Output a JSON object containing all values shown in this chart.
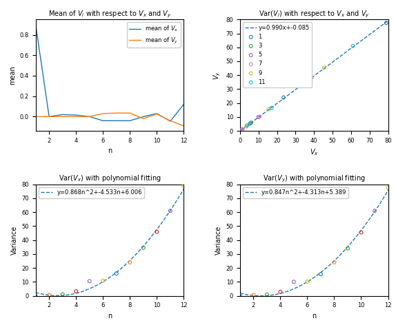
{
  "top_left": {
    "title": "Mean of $V_i$ with respect to $V_x$ and $V_y$",
    "xlabel": "n",
    "ylabel": "mean",
    "mean_vx_n": [
      1,
      2,
      3,
      4,
      5,
      6,
      7,
      8,
      9,
      10,
      11,
      12
    ],
    "mean_vx": [
      0.9,
      0.0,
      0.02,
      0.015,
      0.0,
      -0.04,
      -0.04,
      -0.04,
      0.0,
      0.03,
      -0.045,
      0.12
    ],
    "mean_vy_n": [
      1,
      2,
      3,
      4,
      5,
      6,
      7,
      8,
      9,
      10,
      11,
      12
    ],
    "mean_vy": [
      0.0,
      0.0,
      0.0,
      0.0,
      0.0,
      0.03,
      0.035,
      0.035,
      -0.02,
      0.025,
      -0.04,
      -0.09
    ],
    "color_vx": "#1f77b4",
    "color_vy": "#ff7f0e",
    "legend_vx": "mean of $V_x$",
    "legend_vy": "mean of $V_y$"
  },
  "top_right": {
    "title": "Var($V_i$) with respect to $V_x$ and $V_y$",
    "xlabel": "$V_x$",
    "ylabel": "$V_y$",
    "fit_label": "y=0.990x+-0.085",
    "fit_slope": 0.99,
    "fit_intercept": -0.085,
    "scatter_colors": [
      "#1f77b4",
      "#2ca02c",
      "#9467bd",
      "#e377c2",
      "#bcbd22",
      "#17becf"
    ],
    "scatter_labels": [
      "1",
      "3",
      "5",
      "7",
      "9",
      "11"
    ],
    "vx_vals": [
      0.05,
      0.3,
      0.9,
      1.4,
      3.5,
      3.8,
      5.5,
      6.0,
      10.0,
      10.5,
      15.5,
      17.0,
      23.5,
      34.0,
      34.5,
      38.5,
      45.5,
      61.0,
      79.0
    ],
    "vy_vals": [
      0.05,
      0.3,
      0.85,
      1.4,
      3.2,
      3.9,
      5.3,
      5.9,
      10.0,
      10.2,
      15.5,
      16.5,
      24.0,
      33.5,
      34.0,
      38.0,
      45.5,
      61.0,
      77.5
    ],
    "point_colors_idx": [
      0,
      1,
      2,
      3,
      4,
      5,
      0,
      1,
      2,
      3,
      4,
      5,
      0,
      1,
      2,
      3,
      4,
      5,
      0
    ]
  },
  "bottom_left": {
    "title": "Var($V_x$) with polynomial fitting",
    "xlabel": "n",
    "ylabel": "Variance",
    "fit_label": "y=0.868n^2+-4.533n+6.006",
    "fit_a": 0.868,
    "fit_b": -4.533,
    "fit_c": 6.006,
    "n_vals": [
      1,
      2,
      3,
      4,
      5,
      6,
      7,
      8,
      9,
      10,
      11,
      12
    ],
    "var_vals": [
      0.05,
      0.5,
      1.0,
      3.2,
      10.5,
      10.8,
      16.0,
      24.0,
      34.5,
      46.0,
      61.0,
      79.0
    ],
    "point_colors_idx": [
      0,
      1,
      2,
      3,
      4,
      5,
      0,
      1,
      2,
      3,
      4,
      5
    ],
    "scatter_colors": [
      "#1f77b4",
      "#ff7f0e",
      "#2ca02c",
      "#d62728",
      "#9467bd",
      "#bcbd22"
    ]
  },
  "bottom_right": {
    "title": "Var($V_y$) with polynomial fitting",
    "xlabel": "n",
    "ylabel": "Variance",
    "fit_label": "y=0.847n^2+-4.313n+5.389",
    "fit_a": 0.847,
    "fit_b": -4.313,
    "fit_c": 5.389,
    "n_vals": [
      1,
      2,
      3,
      4,
      5,
      6,
      7,
      8,
      9,
      10,
      11,
      12
    ],
    "var_vals": [
      0.05,
      0.5,
      0.9,
      2.8,
      10.0,
      10.2,
      15.5,
      24.0,
      34.0,
      45.5,
      61.0,
      77.5
    ],
    "point_colors_idx": [
      0,
      1,
      2,
      3,
      4,
      5,
      0,
      1,
      2,
      3,
      4,
      5
    ],
    "scatter_colors": [
      "#1f77b4",
      "#ff7f0e",
      "#2ca02c",
      "#d62728",
      "#9467bd",
      "#bcbd22"
    ]
  }
}
